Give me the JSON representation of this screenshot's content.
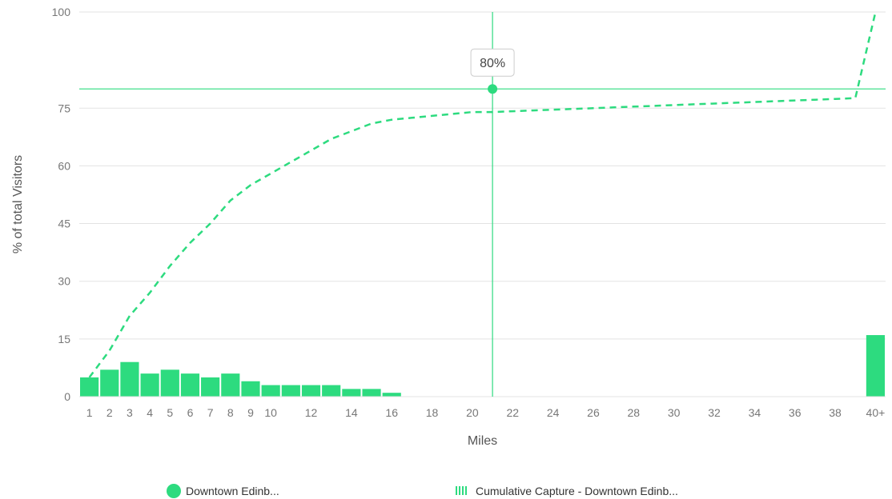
{
  "chart_data": {
    "type": "bar",
    "title": "",
    "xlabel": "Miles",
    "ylabel": "% of total Visitors",
    "ylim": [
      0,
      100
    ],
    "yticks": [
      "0",
      "15",
      "30",
      "45",
      "60",
      "75",
      "100"
    ],
    "ytick_values": [
      0,
      15,
      30,
      45,
      60,
      75,
      100
    ],
    "categories": [
      "1",
      "2",
      "3",
      "4",
      "5",
      "6",
      "7",
      "8",
      "9",
      "10",
      "11",
      "12",
      "13",
      "14",
      "15",
      "16",
      "17",
      "18",
      "19",
      "20",
      "21",
      "22",
      "23",
      "24",
      "25",
      "26",
      "27",
      "28",
      "29",
      "30",
      "31",
      "32",
      "33",
      "34",
      "35",
      "36",
      "37",
      "38",
      "39",
      "40+"
    ],
    "xtick_labels": [
      "1",
      "2",
      "3",
      "4",
      "5",
      "6",
      "7",
      "8",
      "9",
      "10",
      "",
      "12",
      "",
      "14",
      "",
      "16",
      "",
      "18",
      "",
      "20",
      "",
      "22",
      "",
      "24",
      "",
      "26",
      "",
      "28",
      "",
      "30",
      "",
      "32",
      "",
      "34",
      "",
      "36",
      "",
      "38",
      "",
      "40+"
    ],
    "series": [
      {
        "name": "Downtown Edinb...",
        "type": "bar",
        "color": "#2ddb7f",
        "values": [
          5,
          7,
          9,
          6,
          7,
          6,
          5,
          6,
          4,
          3,
          3,
          3,
          3,
          2,
          2,
          1,
          0,
          0,
          0,
          0,
          0,
          0,
          0,
          0,
          0,
          0,
          0,
          0,
          0,
          0,
          0,
          0,
          0,
          0,
          0,
          0,
          0,
          0,
          0,
          16
        ]
      },
      {
        "name": "Cumulative Capture - Downtown Edinb...",
        "type": "line",
        "style": "dashed",
        "color": "#2ddb7f",
        "values": [
          5,
          12,
          21,
          27,
          34,
          40,
          45,
          51,
          55,
          58,
          61,
          64,
          67,
          69,
          71,
          72,
          72.5,
          73,
          73.5,
          74,
          74,
          74.2,
          74.4,
          74.6,
          74.8,
          75,
          75.2,
          75.4,
          75.6,
          75.8,
          76,
          76.2,
          76.4,
          76.6,
          76.8,
          77,
          77.2,
          77.4,
          77.6,
          100
        ]
      }
    ],
    "marker": {
      "category": "21",
      "value": 80,
      "label": "80%"
    },
    "grid": true,
    "legend": "bottom-center"
  }
}
